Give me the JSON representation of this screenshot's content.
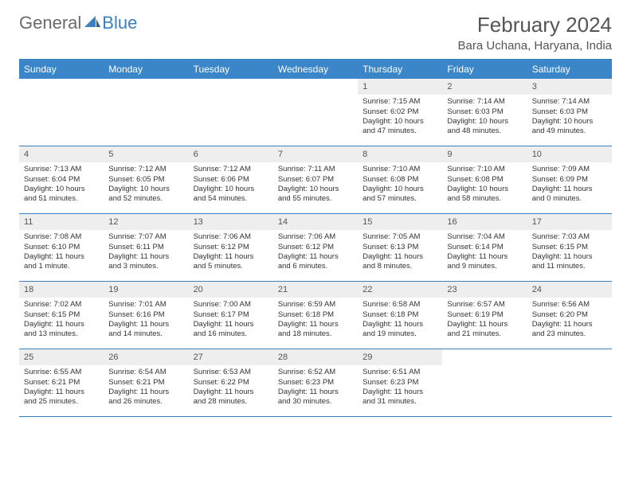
{
  "logo": {
    "text1": "General",
    "text2": "Blue"
  },
  "header": {
    "month_year": "February 2024",
    "location": "Bara Uchana, Haryana, India"
  },
  "colors": {
    "header_bg": "#3a86c8",
    "border": "#3a7fbf",
    "daynum_bg": "#eeeeee",
    "text": "#333333",
    "header_text": "#ffffff",
    "title_text": "#555555"
  },
  "day_labels": [
    "Sunday",
    "Monday",
    "Tuesday",
    "Wednesday",
    "Thursday",
    "Friday",
    "Saturday"
  ],
  "weeks": [
    [
      {
        "num": "",
        "sunrise": "",
        "sunset": "",
        "daylight": ""
      },
      {
        "num": "",
        "sunrise": "",
        "sunset": "",
        "daylight": ""
      },
      {
        "num": "",
        "sunrise": "",
        "sunset": "",
        "daylight": ""
      },
      {
        "num": "",
        "sunrise": "",
        "sunset": "",
        "daylight": ""
      },
      {
        "num": "1",
        "sunrise": "Sunrise: 7:15 AM",
        "sunset": "Sunset: 6:02 PM",
        "daylight": "Daylight: 10 hours and 47 minutes."
      },
      {
        "num": "2",
        "sunrise": "Sunrise: 7:14 AM",
        "sunset": "Sunset: 6:03 PM",
        "daylight": "Daylight: 10 hours and 48 minutes."
      },
      {
        "num": "3",
        "sunrise": "Sunrise: 7:14 AM",
        "sunset": "Sunset: 6:03 PM",
        "daylight": "Daylight: 10 hours and 49 minutes."
      }
    ],
    [
      {
        "num": "4",
        "sunrise": "Sunrise: 7:13 AM",
        "sunset": "Sunset: 6:04 PM",
        "daylight": "Daylight: 10 hours and 51 minutes."
      },
      {
        "num": "5",
        "sunrise": "Sunrise: 7:12 AM",
        "sunset": "Sunset: 6:05 PM",
        "daylight": "Daylight: 10 hours and 52 minutes."
      },
      {
        "num": "6",
        "sunrise": "Sunrise: 7:12 AM",
        "sunset": "Sunset: 6:06 PM",
        "daylight": "Daylight: 10 hours and 54 minutes."
      },
      {
        "num": "7",
        "sunrise": "Sunrise: 7:11 AM",
        "sunset": "Sunset: 6:07 PM",
        "daylight": "Daylight: 10 hours and 55 minutes."
      },
      {
        "num": "8",
        "sunrise": "Sunrise: 7:10 AM",
        "sunset": "Sunset: 6:08 PM",
        "daylight": "Daylight: 10 hours and 57 minutes."
      },
      {
        "num": "9",
        "sunrise": "Sunrise: 7:10 AM",
        "sunset": "Sunset: 6:08 PM",
        "daylight": "Daylight: 10 hours and 58 minutes."
      },
      {
        "num": "10",
        "sunrise": "Sunrise: 7:09 AM",
        "sunset": "Sunset: 6:09 PM",
        "daylight": "Daylight: 11 hours and 0 minutes."
      }
    ],
    [
      {
        "num": "11",
        "sunrise": "Sunrise: 7:08 AM",
        "sunset": "Sunset: 6:10 PM",
        "daylight": "Daylight: 11 hours and 1 minute."
      },
      {
        "num": "12",
        "sunrise": "Sunrise: 7:07 AM",
        "sunset": "Sunset: 6:11 PM",
        "daylight": "Daylight: 11 hours and 3 minutes."
      },
      {
        "num": "13",
        "sunrise": "Sunrise: 7:06 AM",
        "sunset": "Sunset: 6:12 PM",
        "daylight": "Daylight: 11 hours and 5 minutes."
      },
      {
        "num": "14",
        "sunrise": "Sunrise: 7:06 AM",
        "sunset": "Sunset: 6:12 PM",
        "daylight": "Daylight: 11 hours and 6 minutes."
      },
      {
        "num": "15",
        "sunrise": "Sunrise: 7:05 AM",
        "sunset": "Sunset: 6:13 PM",
        "daylight": "Daylight: 11 hours and 8 minutes."
      },
      {
        "num": "16",
        "sunrise": "Sunrise: 7:04 AM",
        "sunset": "Sunset: 6:14 PM",
        "daylight": "Daylight: 11 hours and 9 minutes."
      },
      {
        "num": "17",
        "sunrise": "Sunrise: 7:03 AM",
        "sunset": "Sunset: 6:15 PM",
        "daylight": "Daylight: 11 hours and 11 minutes."
      }
    ],
    [
      {
        "num": "18",
        "sunrise": "Sunrise: 7:02 AM",
        "sunset": "Sunset: 6:15 PM",
        "daylight": "Daylight: 11 hours and 13 minutes."
      },
      {
        "num": "19",
        "sunrise": "Sunrise: 7:01 AM",
        "sunset": "Sunset: 6:16 PM",
        "daylight": "Daylight: 11 hours and 14 minutes."
      },
      {
        "num": "20",
        "sunrise": "Sunrise: 7:00 AM",
        "sunset": "Sunset: 6:17 PM",
        "daylight": "Daylight: 11 hours and 16 minutes."
      },
      {
        "num": "21",
        "sunrise": "Sunrise: 6:59 AM",
        "sunset": "Sunset: 6:18 PM",
        "daylight": "Daylight: 11 hours and 18 minutes."
      },
      {
        "num": "22",
        "sunrise": "Sunrise: 6:58 AM",
        "sunset": "Sunset: 6:18 PM",
        "daylight": "Daylight: 11 hours and 19 minutes."
      },
      {
        "num": "23",
        "sunrise": "Sunrise: 6:57 AM",
        "sunset": "Sunset: 6:19 PM",
        "daylight": "Daylight: 11 hours and 21 minutes."
      },
      {
        "num": "24",
        "sunrise": "Sunrise: 6:56 AM",
        "sunset": "Sunset: 6:20 PM",
        "daylight": "Daylight: 11 hours and 23 minutes."
      }
    ],
    [
      {
        "num": "25",
        "sunrise": "Sunrise: 6:55 AM",
        "sunset": "Sunset: 6:21 PM",
        "daylight": "Daylight: 11 hours and 25 minutes."
      },
      {
        "num": "26",
        "sunrise": "Sunrise: 6:54 AM",
        "sunset": "Sunset: 6:21 PM",
        "daylight": "Daylight: 11 hours and 26 minutes."
      },
      {
        "num": "27",
        "sunrise": "Sunrise: 6:53 AM",
        "sunset": "Sunset: 6:22 PM",
        "daylight": "Daylight: 11 hours and 28 minutes."
      },
      {
        "num": "28",
        "sunrise": "Sunrise: 6:52 AM",
        "sunset": "Sunset: 6:23 PM",
        "daylight": "Daylight: 11 hours and 30 minutes."
      },
      {
        "num": "29",
        "sunrise": "Sunrise: 6:51 AM",
        "sunset": "Sunset: 6:23 PM",
        "daylight": "Daylight: 11 hours and 31 minutes."
      },
      {
        "num": "",
        "sunrise": "",
        "sunset": "",
        "daylight": ""
      },
      {
        "num": "",
        "sunrise": "",
        "sunset": "",
        "daylight": ""
      }
    ]
  ]
}
